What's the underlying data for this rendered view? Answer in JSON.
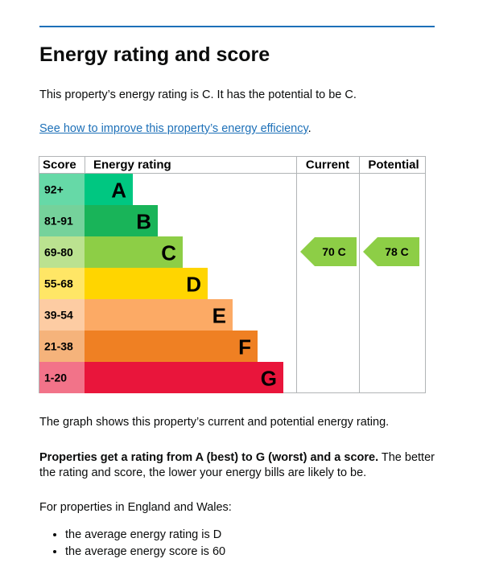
{
  "header": {
    "title": "Energy rating and score"
  },
  "intro": "This property’s energy rating is C. It has the potential to be C.",
  "link": "See how to improve this property’s energy efficiency",
  "link_after": ".",
  "graph": {
    "headers": [
      "Score",
      "Energy rating",
      "Current",
      "Potential"
    ],
    "rows": [
      [
        "92+",
        "A"
      ],
      [
        "81-91",
        "B"
      ],
      [
        "69-80",
        "C"
      ],
      [
        "55-68",
        "D"
      ],
      [
        "39-54",
        "E"
      ],
      [
        "21-38",
        "F"
      ],
      [
        "1-20",
        "G"
      ]
    ],
    "current": "70 C",
    "potential": "78 C"
  },
  "caption": "The graph shows this property’s current and potential energy rating.",
  "explanation": {
    "bold": "Properties get a rating from A (best) to G (worst) and a score.",
    "rest": "The better the rating and score, the lower your energy bills are likely to be."
  },
  "average_intro": "For properties in England and Wales:",
  "average_items": [
    "the average energy rating is D",
    "the average energy score is 60"
  ]
}
